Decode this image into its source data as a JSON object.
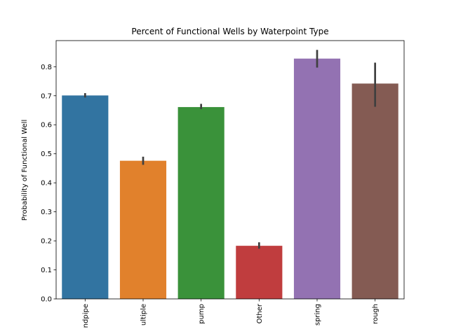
{
  "chart_data": {
    "type": "bar",
    "title": "Percent of Functional Wells by Waterpoint Type",
    "xlabel": "",
    "ylabel": "Probability of Functional Well",
    "categories": [
      "ndpipe",
      "ultiple",
      "pump",
      "Other",
      "spring",
      "rough"
    ],
    "values": [
      0.701,
      0.476,
      0.661,
      0.183,
      0.828,
      0.742
    ],
    "error_low": [
      0.694,
      0.462,
      0.654,
      0.173,
      0.797,
      0.662
    ],
    "error_high": [
      0.709,
      0.49,
      0.672,
      0.195,
      0.858,
      0.814
    ],
    "colors": [
      "#3274a1",
      "#e1812c",
      "#3a923a",
      "#c03d3e",
      "#9372b2",
      "#845b53"
    ],
    "error_color": "#3f3f3f",
    "ylim": [
      0,
      0.89
    ],
    "yticks": [
      0.0,
      0.1,
      0.2,
      0.3,
      0.4,
      0.5,
      0.6,
      0.7,
      0.8
    ],
    "ytick_labels": [
      "0.0",
      "0.1",
      "0.2",
      "0.3",
      "0.4",
      "0.5",
      "0.6",
      "0.7",
      "0.8"
    ],
    "grid": false,
    "legend": "none"
  }
}
